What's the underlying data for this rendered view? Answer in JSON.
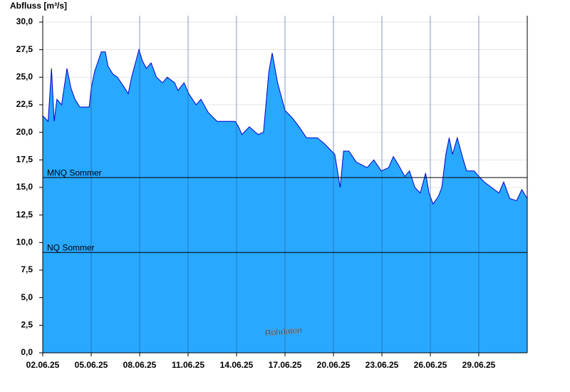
{
  "chart_data": {
    "type": "area",
    "title": "Abfluss [m³/s]",
    "annotation": "Rohdaten",
    "color": "#29a8ff",
    "line_color": "#0000cc",
    "grid": true,
    "x": [
      "2025-06-02 00:00",
      "2025-06-02 08:00",
      "2025-06-02 13:00",
      "2025-06-02 17:00",
      "2025-06-02 21:00",
      "2025-06-03 04:00",
      "2025-06-03 12:00",
      "2025-06-03 18:00",
      "2025-06-04 00:00",
      "2025-06-04 07:00",
      "2025-06-04 21:00",
      "2025-06-05 00:00",
      "2025-06-05 05:00",
      "2025-06-05 15:00",
      "2025-06-05 21:00",
      "2025-06-06 01:00",
      "2025-06-06 08:00",
      "2025-06-06 15:00",
      "2025-06-07 02:00",
      "2025-06-07 07:00",
      "2025-06-07 12:00",
      "2025-06-07 23:00",
      "2025-06-08 04:00",
      "2025-06-08 10:00",
      "2025-06-08 17:00",
      "2025-06-09 01:00",
      "2025-06-09 10:00",
      "2025-06-09 17:00",
      "2025-06-10 04:00",
      "2025-06-10 09:00",
      "2025-06-10 18:00",
      "2025-06-11 01:00",
      "2025-06-11 12:00",
      "2025-06-11 19:00",
      "2025-06-12 06:00",
      "2025-06-12 19:00",
      "2025-06-13 22:00",
      "2025-06-14 03:00",
      "2025-06-14 08:00",
      "2025-06-14 19:00",
      "2025-06-15 08:00",
      "2025-06-15 16:00",
      "2025-06-16 00:00",
      "2025-06-16 05:00",
      "2025-06-16 13:00",
      "2025-06-17 00:00",
      "2025-06-17 11:00",
      "2025-06-17 21:00",
      "2025-06-18 08:00",
      "2025-06-19 00:00",
      "2025-06-19 10:00",
      "2025-06-19 18:00",
      "2025-06-20 02:00",
      "2025-06-20 10:00",
      "2025-06-20 15:00",
      "2025-06-20 23:00",
      "2025-06-21 10:00",
      "2025-06-22 02:00",
      "2025-06-22 12:00",
      "2025-06-22 23:00",
      "2025-06-23 10:00",
      "2025-06-23 17:00",
      "2025-06-24 01:00",
      "2025-06-24 10:00",
      "2025-06-24 17:00",
      "2025-06-25 01:00",
      "2025-06-25 09:00",
      "2025-06-25 17:00",
      "2025-06-25 22:00",
      "2025-06-26 04:00",
      "2025-06-26 12:00",
      "2025-06-26 17:00",
      "2025-06-26 23:00",
      "2025-06-27 04:00",
      "2025-06-27 09:00",
      "2025-06-27 16:00",
      "2025-06-28 01:00",
      "2025-06-28 06:00",
      "2025-06-28 17:00",
      "2025-06-29 00:00",
      "2025-06-29 08:00",
      "2025-06-29 19:00",
      "2025-06-30 06:00",
      "2025-06-30 13:00",
      "2025-06-30 22:00",
      "2025-07-01 08:00",
      "2025-07-01 16:00",
      "2025-07-02 00:00"
    ],
    "values": [
      21.5,
      21.0,
      25.8,
      21.0,
      23.0,
      22.5,
      25.8,
      24.0,
      23.0,
      22.3,
      22.3,
      24.0,
      25.5,
      27.3,
      27.3,
      26.0,
      25.3,
      25.0,
      24.0,
      23.5,
      25.0,
      27.5,
      26.5,
      25.8,
      26.3,
      25.0,
      24.5,
      25.0,
      24.5,
      23.8,
      24.5,
      23.5,
      22.5,
      23.0,
      21.8,
      21.0,
      21.0,
      20.5,
      19.8,
      20.5,
      19.8,
      20.0,
      25.5,
      27.2,
      24.5,
      22.0,
      21.3,
      20.5,
      19.5,
      19.5,
      19.0,
      18.5,
      18.0,
      15.0,
      18.3,
      18.3,
      17.3,
      16.8,
      17.5,
      16.5,
      16.8,
      17.8,
      17.0,
      16.0,
      16.5,
      15.0,
      14.5,
      16.3,
      14.5,
      13.5,
      14.2,
      15.0,
      18.0,
      19.5,
      18.0,
      19.5,
      17.5,
      16.5,
      16.5,
      16.0,
      15.5,
      15.0,
      14.5,
      15.5,
      14.0,
      13.8,
      14.8,
      14.0
    ],
    "xlim": [
      "2025-06-02 00:00",
      "2025-07-02 00:00"
    ],
    "xticks": [
      {
        "value": "2025-06-02",
        "label": "02.06.25"
      },
      {
        "value": "2025-06-05",
        "label": "05.06.25"
      },
      {
        "value": "2025-06-08",
        "label": "08.06.25"
      },
      {
        "value": "2025-06-11",
        "label": "11.06.25"
      },
      {
        "value": "2025-06-14",
        "label": "14.06.25"
      },
      {
        "value": "2025-06-17",
        "label": "17.06.25"
      },
      {
        "value": "2025-06-20",
        "label": "20.06.25"
      },
      {
        "value": "2025-06-23",
        "label": "23.06.25"
      },
      {
        "value": "2025-06-26",
        "label": "26.06.25"
      },
      {
        "value": "2025-06-29",
        "label": "29.06.25"
      }
    ],
    "ylim": [
      0,
      30
    ],
    "yticks": [
      {
        "value": 0,
        "label": "0,0"
      },
      {
        "value": 2.5,
        "label": "2,5"
      },
      {
        "value": 5,
        "label": "5,0"
      },
      {
        "value": 7.5,
        "label": "7,5"
      },
      {
        "value": 10,
        "label": "10,0"
      },
      {
        "value": 12.5,
        "label": "12,5"
      },
      {
        "value": 15,
        "label": "15,0"
      },
      {
        "value": 17.5,
        "label": "17,5"
      },
      {
        "value": 20,
        "label": "20,0"
      },
      {
        "value": 22.5,
        "label": "22,5"
      },
      {
        "value": 25,
        "label": "25,0"
      },
      {
        "value": 27.5,
        "label": "27,5"
      },
      {
        "value": 30,
        "label": "30,0"
      }
    ],
    "reference_lines": [
      {
        "label": "MNQ Sommer",
        "value": 15.9
      },
      {
        "label": "NQ Sommer",
        "value": 9.1
      }
    ]
  }
}
